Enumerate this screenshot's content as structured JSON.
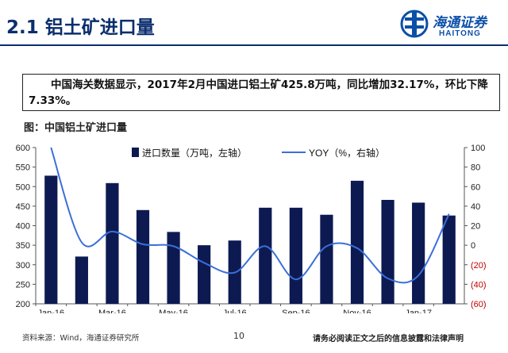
{
  "header": {
    "title": "2.1 铝土矿进口量"
  },
  "logo": {
    "cn": "海通证券",
    "en": "HAITONG"
  },
  "summary": {
    "text": "中国海关数据显示，2017年2月中国进口铝土矿425.8万吨，同比增加32.17%，环比下降7.33%。"
  },
  "figure": {
    "title": "图：中国铝土矿进口量"
  },
  "footer": {
    "source": "资料来源：Wind，海通证券研究所",
    "page": "10",
    "disclaimer": "请务必阅读正文之后的信息披露和法律声明"
  },
  "colors": {
    "bar": "#0d1a52",
    "line": "#3a6fd8",
    "right_axis": "#c00000"
  },
  "chart_data": {
    "type": "bar",
    "categories": [
      "Jan-16",
      "Feb-16",
      "Mar-16",
      "Apr-16",
      "May-16",
      "Jun-16",
      "Jul-16",
      "Aug-16",
      "Sep-16",
      "Oct-16",
      "Nov-16",
      "Dec-16",
      "Jan-17",
      "Feb-17"
    ],
    "x_tick_labels": [
      "Jan-16",
      "",
      "Mar-16",
      "",
      "May-16",
      "",
      "Jul-16",
      "",
      "Sep-16",
      "",
      "Nov-16",
      "",
      "Jan-17",
      ""
    ],
    "series": [
      {
        "name": "进口数量（万吨，左轴）",
        "type": "bar",
        "axis": "left",
        "values": [
          528,
          321,
          509,
          440,
          384,
          350,
          362,
          446,
          446,
          428,
          515,
          466,
          459,
          426
        ]
      },
      {
        "name": "YOY（%，右轴）",
        "type": "line",
        "axis": "right",
        "values": [
          100,
          3,
          14,
          1,
          -1,
          -18,
          -28,
          -1,
          -35,
          -1,
          -3,
          -34,
          -31,
          32
        ]
      }
    ],
    "ylim_left": [
      200,
      600
    ],
    "yticks_left": [
      "600",
      "550",
      "500",
      "450",
      "400",
      "350",
      "300",
      "250",
      "200"
    ],
    "ylim_right": [
      -60,
      100
    ],
    "yticks_right": [
      "100",
      "80",
      "60",
      "40",
      "20",
      "0",
      "(20)",
      "(40)",
      "(60)"
    ],
    "grid": false,
    "legend": "top"
  }
}
